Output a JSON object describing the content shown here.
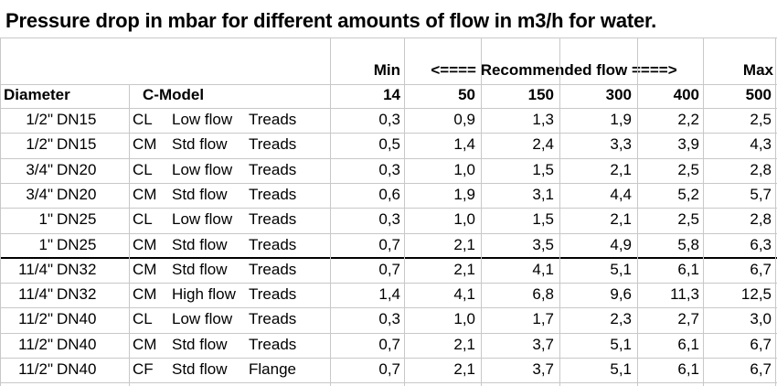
{
  "title": "Pressure drop in mbar for different amounts of flow in m3/h for water.",
  "header": {
    "min_label": "Min",
    "recommended_label": "<==== Recommended flow ====>",
    "max_label": "Max",
    "diameter_label": "Diameter",
    "model_label": "C-Model",
    "flows": [
      "14",
      "50",
      "150",
      "300",
      "400",
      "500"
    ]
  },
  "rows": [
    {
      "size": "1/2\"",
      "dn": "DN15",
      "code": "CL",
      "type": "Low flow",
      "conn": "Treads",
      "values": [
        "0,3",
        "0,9",
        "1,3",
        "1,9",
        "2,2",
        "2,5"
      ]
    },
    {
      "size": "1/2\"",
      "dn": "DN15",
      "code": "CM",
      "type": "Std flow",
      "conn": "Treads",
      "values": [
        "0,5",
        "1,4",
        "2,4",
        "3,3",
        "3,9",
        "4,3"
      ]
    },
    {
      "size": "3/4\"",
      "dn": "DN20",
      "code": "CL",
      "type": "Low flow",
      "conn": "Treads",
      "values": [
        "0,3",
        "1,0",
        "1,5",
        "2,1",
        "2,5",
        "2,8"
      ]
    },
    {
      "size": "3/4\"",
      "dn": "DN20",
      "code": "CM",
      "type": "Std flow",
      "conn": "Treads",
      "values": [
        "0,6",
        "1,9",
        "3,1",
        "4,4",
        "5,2",
        "5,7"
      ]
    },
    {
      "size": "1\"",
      "dn": "DN25",
      "code": "CL",
      "type": "Low flow",
      "conn": "Treads",
      "values": [
        "0,3",
        "1,0",
        "1,5",
        "2,1",
        "2,5",
        "2,8"
      ]
    },
    {
      "size": "1\"",
      "dn": "DN25",
      "code": "CM",
      "type": "Std flow",
      "conn": "Treads",
      "values": [
        "0,7",
        "2,1",
        "3,5",
        "4,9",
        "5,8",
        "6,3"
      ]
    },
    {
      "size": "11/4\"",
      "dn": "DN32",
      "code": "CM",
      "type": "Std flow",
      "conn": "Treads",
      "values": [
        "0,7",
        "2,1",
        "4,1",
        "5,1",
        "6,1",
        "6,7"
      ]
    },
    {
      "size": "11/4\"",
      "dn": "DN32",
      "code": "CM",
      "type": "High flow",
      "conn": "Treads",
      "values": [
        "1,4",
        "4,1",
        "6,8",
        "9,6",
        "11,3",
        "12,5"
      ]
    },
    {
      "size": "11/2\"",
      "dn": "DN40",
      "code": "CL",
      "type": "Low flow",
      "conn": "Treads",
      "values": [
        "0,3",
        "1,0",
        "1,7",
        "2,3",
        "2,7",
        "3,0"
      ]
    },
    {
      "size": "11/2\"",
      "dn": "DN40",
      "code": "CM",
      "type": "Std flow",
      "conn": "Treads",
      "values": [
        "0,7",
        "2,1",
        "3,7",
        "5,1",
        "6,1",
        "6,7"
      ]
    },
    {
      "size": "11/2\"",
      "dn": "DN40",
      "code": "CF",
      "type": "Std flow",
      "conn": "Flange",
      "values": [
        "0,7",
        "2,1",
        "3,7",
        "5,1",
        "6,1",
        "6,7"
      ]
    }
  ]
}
